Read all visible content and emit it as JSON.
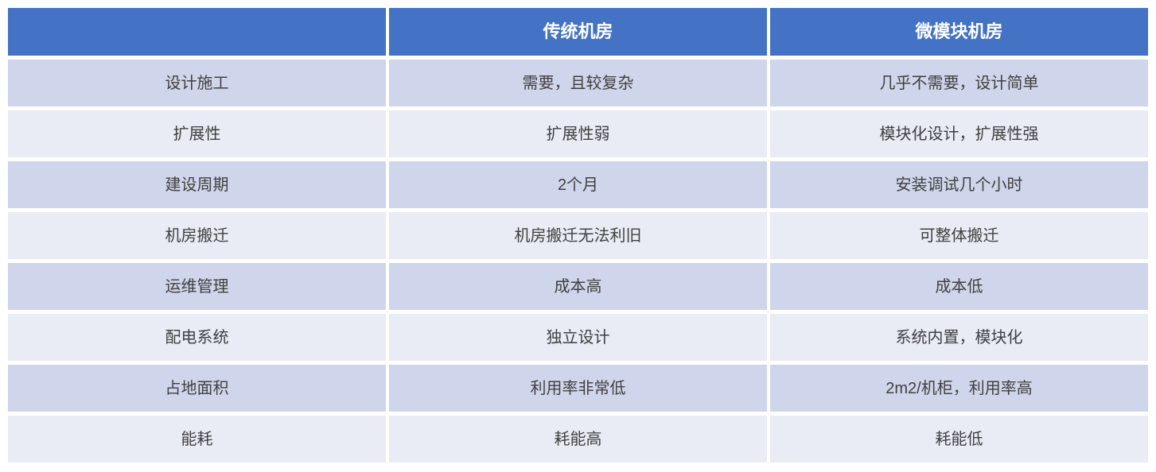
{
  "chart_data": {
    "type": "table",
    "columns": [
      "",
      "传统机房",
      "微模块机房"
    ],
    "rows": [
      {
        "label": "设计施工",
        "values": [
          "需要，且较复杂",
          "几乎不需要，设计简单"
        ]
      },
      {
        "label": "扩展性",
        "values": [
          "扩展性弱",
          "模块化设计，扩展性强"
        ]
      },
      {
        "label": "建设周期",
        "values": [
          "2个月",
          "安装调试几个小时"
        ]
      },
      {
        "label": "机房搬迁",
        "values": [
          "机房搬迁无法利旧",
          "可整体搬迁"
        ]
      },
      {
        "label": "运维管理",
        "values": [
          "成本高",
          "成本低"
        ]
      },
      {
        "label": "配电系统",
        "values": [
          "独立设计",
          "系统内置，模块化"
        ]
      },
      {
        "label": "占地面积",
        "values": [
          "利用率非常低",
          "2m2/机柜，利用率高"
        ]
      },
      {
        "label": "能耗",
        "values": [
          "耗能高",
          "耗能低"
        ]
      }
    ],
    "layout_hints": {
      "banding": "alternating rows dark/light, header blue",
      "grid": "white 4-5px separators between cells"
    },
    "colors": {
      "header_bg": "#4472C4",
      "header_text": "#FFFFFF",
      "band_dark": "#CFD5EA",
      "band_light": "#E9EBF5",
      "cell_text": "#404040",
      "separator": "#FFFFFF"
    }
  }
}
